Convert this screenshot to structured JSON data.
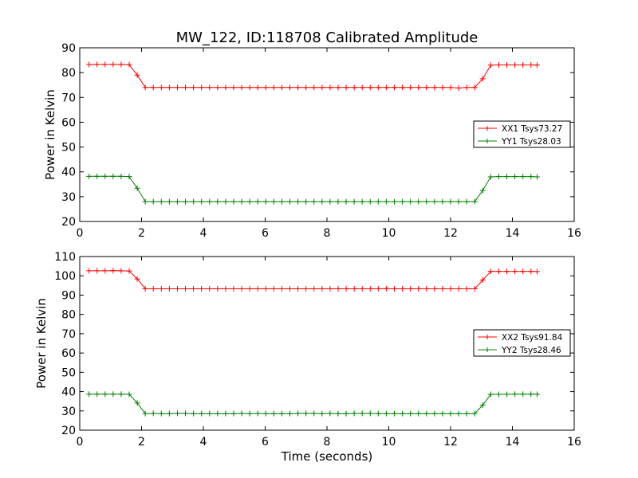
{
  "figure_title": "MW_122, ID:118708 Calibrated Amplitude",
  "chart_data": [
    {
      "type": "line",
      "title": "MW_122, ID:118708 Calibrated Amplitude",
      "xlabel": "",
      "ylabel": "Power in Kelvin",
      "xlim": [
        0,
        16
      ],
      "ylim": [
        20,
        90
      ],
      "xticks": [
        "0",
        "2",
        "4",
        "6",
        "8",
        "10",
        "12",
        "14",
        "16"
      ],
      "yticks": [
        "20",
        "30",
        "40",
        "50",
        "60",
        "70",
        "80",
        "90"
      ],
      "legend_position": "center-right",
      "x": [
        0.3,
        0.56,
        0.82,
        1.08,
        1.34,
        1.6,
        1.86,
        2.12,
        2.38,
        2.64,
        2.9,
        3.16,
        3.42,
        3.68,
        3.94,
        4.2,
        4.46,
        4.72,
        4.98,
        5.24,
        5.5,
        5.76,
        6.02,
        6.28,
        6.54,
        6.8,
        7.06,
        7.32,
        7.58,
        7.84,
        8.1,
        8.36,
        8.62,
        8.88,
        9.14,
        9.4,
        9.66,
        9.92,
        10.18,
        10.44,
        10.7,
        10.96,
        11.22,
        11.48,
        11.74,
        12.0,
        12.26,
        12.52,
        12.78,
        13.04,
        13.3,
        13.56,
        13.82,
        14.08,
        14.34,
        14.6,
        14.8
      ],
      "series": [
        {
          "name": "XX1 Tsys73.27",
          "color": "#ff0000",
          "values": [
            83.3,
            83.3,
            83.3,
            83.3,
            83.3,
            83.2,
            79.0,
            74.0,
            74.0,
            74.0,
            74.0,
            74.0,
            74.0,
            74.0,
            74.0,
            74.0,
            74.0,
            74.0,
            74.0,
            74.0,
            74.0,
            74.0,
            74.0,
            74.0,
            74.0,
            74.0,
            74.0,
            74.0,
            74.0,
            74.0,
            74.0,
            74.0,
            74.0,
            74.0,
            74.0,
            74.0,
            74.0,
            74.0,
            74.0,
            74.0,
            74.0,
            74.0,
            74.0,
            74.0,
            74.0,
            74.0,
            73.8,
            74.0,
            74.0,
            77.5,
            83.0,
            83.1,
            83.1,
            83.1,
            83.1,
            83.1,
            83.0
          ]
        },
        {
          "name": "YY1 Tsys28.03",
          "color": "#008000",
          "values": [
            38.2,
            38.2,
            38.2,
            38.2,
            38.2,
            38.1,
            33.4,
            28.0,
            28.0,
            28.0,
            28.0,
            28.0,
            28.0,
            28.0,
            28.0,
            28.0,
            28.0,
            28.0,
            28.0,
            28.0,
            28.0,
            28.0,
            28.0,
            28.0,
            28.0,
            28.0,
            28.0,
            28.0,
            28.0,
            28.0,
            28.0,
            28.0,
            28.0,
            28.0,
            28.0,
            28.0,
            28.0,
            28.0,
            28.0,
            28.0,
            28.0,
            28.0,
            28.0,
            28.0,
            28.0,
            28.0,
            28.0,
            28.0,
            28.0,
            32.5,
            38.0,
            38.1,
            38.1,
            38.1,
            38.1,
            38.1,
            38.0
          ]
        }
      ]
    },
    {
      "type": "line",
      "title": "",
      "xlabel": "Time (seconds)",
      "ylabel": "Power in Kelvin",
      "xlim": [
        0,
        16
      ],
      "ylim": [
        20,
        110
      ],
      "xticks": [
        "0",
        "2",
        "4",
        "6",
        "8",
        "10",
        "12",
        "14",
        "16"
      ],
      "yticks": [
        "20",
        "30",
        "40",
        "50",
        "60",
        "70",
        "80",
        "90",
        "100",
        "110"
      ],
      "legend_position": "center-right",
      "x": [
        0.3,
        0.56,
        0.82,
        1.08,
        1.34,
        1.6,
        1.86,
        2.12,
        2.38,
        2.64,
        2.9,
        3.16,
        3.42,
        3.68,
        3.94,
        4.2,
        4.46,
        4.72,
        4.98,
        5.24,
        5.5,
        5.76,
        6.02,
        6.28,
        6.54,
        6.8,
        7.06,
        7.32,
        7.58,
        7.84,
        8.1,
        8.36,
        8.62,
        8.88,
        9.14,
        9.4,
        9.66,
        9.92,
        10.18,
        10.44,
        10.7,
        10.96,
        11.22,
        11.48,
        11.74,
        12.0,
        12.26,
        12.52,
        12.78,
        13.04,
        13.3,
        13.56,
        13.82,
        14.08,
        14.34,
        14.6,
        14.8
      ],
      "series": [
        {
          "name": "XX2 Tsys91.84",
          "color": "#ff0000",
          "values": [
            102.6,
            102.6,
            102.6,
            102.7,
            102.6,
            102.5,
            98.4,
            93.3,
            93.3,
            93.3,
            93.3,
            93.3,
            93.3,
            93.3,
            93.3,
            93.3,
            93.3,
            93.3,
            93.3,
            93.3,
            93.3,
            93.3,
            93.3,
            93.3,
            93.3,
            93.3,
            93.3,
            93.3,
            93.3,
            93.3,
            93.3,
            93.3,
            93.3,
            93.3,
            93.3,
            93.3,
            93.3,
            93.4,
            93.3,
            93.3,
            93.3,
            93.3,
            93.3,
            93.3,
            93.3,
            93.3,
            93.3,
            93.3,
            93.3,
            97.8,
            102.3,
            102.3,
            102.3,
            102.3,
            102.3,
            102.3,
            102.2
          ]
        },
        {
          "name": "YY2 Tsys28.46",
          "color": "#008000",
          "values": [
            38.7,
            38.7,
            38.7,
            38.7,
            38.7,
            38.6,
            34.1,
            28.6,
            28.7,
            28.6,
            28.6,
            28.7,
            28.7,
            28.6,
            28.6,
            28.6,
            28.6,
            28.6,
            28.6,
            28.7,
            28.6,
            28.7,
            28.6,
            28.6,
            28.6,
            28.6,
            28.7,
            28.7,
            28.7,
            28.6,
            28.7,
            28.6,
            28.6,
            28.7,
            28.7,
            28.7,
            28.6,
            28.6,
            28.6,
            28.6,
            28.6,
            28.6,
            28.6,
            28.6,
            28.6,
            28.6,
            28.6,
            28.6,
            28.6,
            33.0,
            38.6,
            38.6,
            38.6,
            38.7,
            38.7,
            38.7,
            38.6
          ]
        }
      ]
    }
  ]
}
